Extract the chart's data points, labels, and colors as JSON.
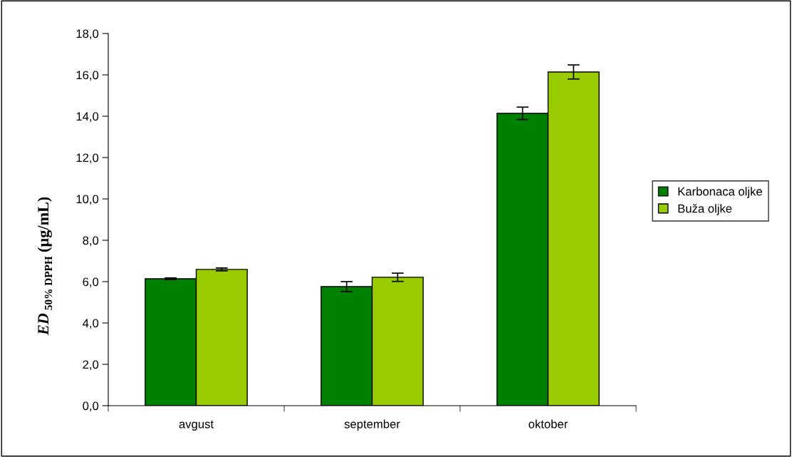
{
  "chart_data": {
    "type": "bar",
    "ylabel": "ED$_{50% DPPH}$ (µg/mL)",
    "categories": [
      "avgust",
      "september",
      "oktober"
    ],
    "series": [
      {
        "name": "Karbonaca oljke",
        "color": "#008000",
        "values": [
          6.14,
          5.76,
          14.14
        ],
        "errors": [
          0.04,
          0.24,
          0.3
        ]
      },
      {
        "name": "Buža oljke",
        "color": "#99cc00",
        "values": [
          6.59,
          6.21,
          16.14
        ],
        "errors": [
          0.07,
          0.2,
          0.34
        ]
      }
    ],
    "ylim": [
      0,
      18
    ],
    "yticks": [
      {
        "value": 0,
        "label": "0,0"
      },
      {
        "value": 2,
        "label": "2,0"
      },
      {
        "value": 4,
        "label": "4,0"
      },
      {
        "value": 6,
        "label": "6,0"
      },
      {
        "value": 8,
        "label": "8,0"
      },
      {
        "value": 10,
        "label": "10,0"
      },
      {
        "value": 12,
        "label": "12,0"
      },
      {
        "value": 14,
        "label": "14,0"
      },
      {
        "value": 16,
        "label": "16,0"
      },
      {
        "value": 18,
        "label": "18,0"
      }
    ],
    "grid": false,
    "legend": "right"
  }
}
